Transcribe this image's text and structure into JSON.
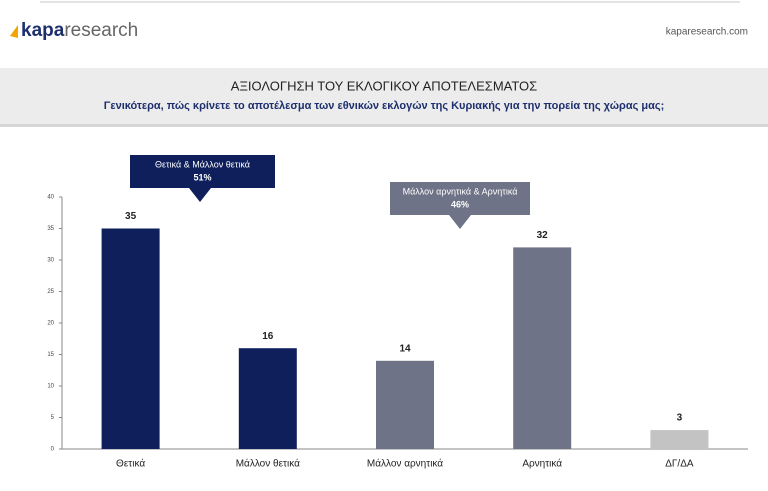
{
  "header": {
    "logo_bold": "kapa",
    "logo_light": "research",
    "site": "kaparesearch.com"
  },
  "chart_data": {
    "type": "bar",
    "title": "ΑΞΙΟΛΟΓΗΣΗ ΤΟΥ ΕΚΛΟΓΙΚΟΥ ΑΠΟΤΕΛΕΣΜΑΤΟΣ",
    "subtitle": "Γενικότερα, πώς κρίνετε το αποτέλεσμα των εθνικών εκλογών της Κυριακής για την πορεία της χώρας μας;",
    "categories": [
      "Θετικά",
      "Μάλλον θετικά",
      "Μάλλον αρνητικά",
      "Αρνητικά",
      "ΔΓ/ΔΑ"
    ],
    "values": [
      35,
      16,
      14,
      32,
      3
    ],
    "colors": [
      "#0e1f5b",
      "#0e1f5b",
      "#6f7387",
      "#6f7387",
      "#c3c3c3"
    ],
    "ylim": [
      0,
      40
    ],
    "yticks": [
      0,
      5,
      10,
      15,
      20,
      25,
      30,
      35,
      40
    ],
    "annotations": [
      {
        "text": "Θετικά & Μάλλον θετικά",
        "label": "51%",
        "color": "#0e1f5b"
      },
      {
        "text": "Μάλλον αρνητικά & Αρνητικά",
        "label": "46%",
        "color": "#6f7387"
      }
    ]
  }
}
